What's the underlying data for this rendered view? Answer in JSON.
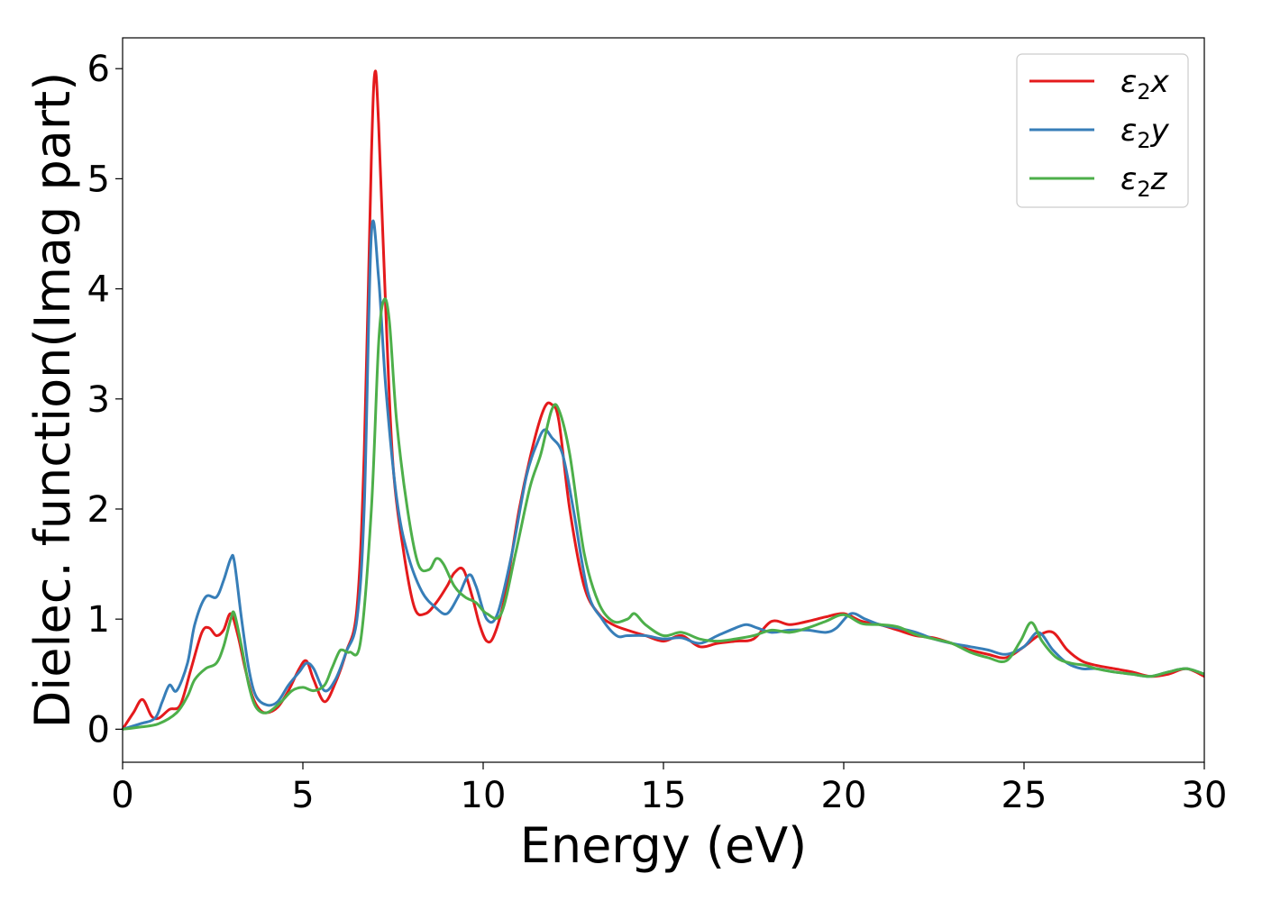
{
  "chart_data": {
    "type": "line",
    "xlabel": "Energy (eV)",
    "ylabel": "Dielec. function(Imag part)",
    "xlim": [
      0,
      30
    ],
    "ylim": [
      -0.3,
      6.28
    ],
    "xticks": [
      0,
      5,
      10,
      15,
      20,
      25,
      30
    ],
    "yticks": [
      0,
      1,
      2,
      3,
      4,
      5,
      6
    ],
    "grid": false,
    "legend_position": "top-right",
    "series": [
      {
        "name": "ε₂x",
        "legend": {
          "base": "ε",
          "sub": "2",
          "var": "x"
        },
        "color": "#e41a1c",
        "x": [
          0,
          0.3,
          0.55,
          0.8,
          1.0,
          1.3,
          1.6,
          1.9,
          2.2,
          2.4,
          2.6,
          2.8,
          3.0,
          3.2,
          3.4,
          3.6,
          3.8,
          4.0,
          4.3,
          4.6,
          4.9,
          5.1,
          5.3,
          5.6,
          5.9,
          6.2,
          6.5,
          6.7,
          6.9,
          7.0,
          7.1,
          7.3,
          7.5,
          7.8,
          8.1,
          8.4,
          8.7,
          9.0,
          9.2,
          9.45,
          9.7,
          9.9,
          10.1,
          10.3,
          10.6,
          11.0,
          11.4,
          11.7,
          11.9,
          12.1,
          12.4,
          12.8,
          13.2,
          13.6,
          14.0,
          14.5,
          15.0,
          15.5,
          16.0,
          16.5,
          17.0,
          17.5,
          18.0,
          18.5,
          19.0,
          19.5,
          20.0,
          20.5,
          21.0,
          21.5,
          22.0,
          22.5,
          23.0,
          23.5,
          24.0,
          24.5,
          25.0,
          25.4,
          25.8,
          26.2,
          26.6,
          27.0,
          27.5,
          28.0,
          28.5,
          29.0,
          29.5,
          30.0
        ],
        "y": [
          0,
          0.15,
          0.27,
          0.12,
          0.1,
          0.18,
          0.22,
          0.55,
          0.88,
          0.92,
          0.85,
          0.9,
          1.05,
          0.85,
          0.55,
          0.3,
          0.18,
          0.15,
          0.2,
          0.35,
          0.55,
          0.62,
          0.45,
          0.25,
          0.42,
          0.7,
          1.1,
          2.5,
          5.2,
          5.97,
          5.5,
          3.8,
          2.4,
          1.6,
          1.1,
          1.05,
          1.15,
          1.3,
          1.42,
          1.45,
          1.2,
          0.95,
          0.8,
          0.85,
          1.2,
          2.0,
          2.6,
          2.92,
          2.95,
          2.8,
          2.0,
          1.3,
          1.05,
          0.95,
          0.9,
          0.85,
          0.8,
          0.85,
          0.75,
          0.78,
          0.8,
          0.82,
          0.98,
          0.95,
          0.98,
          1.02,
          1.05,
          0.98,
          0.95,
          0.9,
          0.85,
          0.83,
          0.78,
          0.72,
          0.68,
          0.65,
          0.75,
          0.85,
          0.88,
          0.72,
          0.62,
          0.58,
          0.55,
          0.52,
          0.48,
          0.5,
          0.55,
          0.48
        ]
      },
      {
        "name": "ε₂y",
        "legend": {
          "base": "ε",
          "sub": "2",
          "var": "y"
        },
        "color": "#377eb8",
        "x": [
          0,
          0.5,
          0.9,
          1.1,
          1.3,
          1.5,
          1.8,
          2.0,
          2.3,
          2.6,
          2.8,
          3.0,
          3.1,
          3.3,
          3.5,
          3.7,
          4.0,
          4.3,
          4.6,
          4.9,
          5.1,
          5.3,
          5.6,
          5.9,
          6.2,
          6.5,
          6.7,
          6.9,
          7.1,
          7.3,
          7.6,
          7.9,
          8.3,
          8.7,
          9.0,
          9.3,
          9.6,
          9.8,
          10.1,
          10.4,
          10.8,
          11.2,
          11.5,
          11.7,
          11.9,
          12.2,
          12.5,
          12.9,
          13.3,
          13.7,
          14.0,
          14.5,
          15.0,
          15.5,
          16.0,
          16.5,
          17.0,
          17.3,
          17.6,
          18.0,
          18.5,
          19.0,
          19.5,
          19.8,
          20.2,
          20.6,
          21.0,
          21.5,
          22.0,
          22.5,
          23.0,
          23.5,
          24.0,
          24.5,
          25.0,
          25.4,
          25.8,
          26.2,
          26.6,
          27.0,
          27.5,
          28.0,
          28.5,
          29.0,
          29.5,
          30.0
        ],
        "y": [
          0,
          0.05,
          0.1,
          0.25,
          0.4,
          0.35,
          0.6,
          0.95,
          1.2,
          1.2,
          1.35,
          1.55,
          1.52,
          1.0,
          0.55,
          0.3,
          0.22,
          0.25,
          0.4,
          0.52,
          0.6,
          0.55,
          0.35,
          0.45,
          0.7,
          1.0,
          2.0,
          4.5,
          4.1,
          3.1,
          2.1,
          1.6,
          1.25,
          1.1,
          1.05,
          1.2,
          1.4,
          1.3,
          1.0,
          1.05,
          1.6,
          2.3,
          2.6,
          2.72,
          2.65,
          2.5,
          2.0,
          1.25,
          1.0,
          0.85,
          0.85,
          0.85,
          0.82,
          0.83,
          0.78,
          0.85,
          0.92,
          0.95,
          0.92,
          0.88,
          0.9,
          0.9,
          0.88,
          0.92,
          1.05,
          1.0,
          0.95,
          0.92,
          0.88,
          0.82,
          0.78,
          0.75,
          0.72,
          0.68,
          0.75,
          0.88,
          0.72,
          0.6,
          0.55,
          0.55,
          0.52,
          0.5,
          0.48,
          0.52,
          0.55,
          0.5
        ]
      },
      {
        "name": "ε₂z",
        "legend": {
          "base": "ε",
          "sub": "2",
          "var": "z"
        },
        "color": "#4daf4a",
        "x": [
          0,
          0.5,
          1.0,
          1.5,
          1.8,
          2.0,
          2.3,
          2.6,
          2.8,
          3.0,
          3.1,
          3.3,
          3.5,
          3.7,
          4.0,
          4.4,
          4.7,
          5.0,
          5.3,
          5.6,
          5.8,
          6.0,
          6.1,
          6.3,
          6.6,
          6.9,
          7.1,
          7.25,
          7.4,
          7.6,
          7.9,
          8.2,
          8.5,
          8.7,
          8.9,
          9.2,
          9.5,
          9.8,
          10.1,
          10.5,
          10.9,
          11.3,
          11.6,
          11.9,
          12.1,
          12.4,
          12.8,
          13.2,
          13.6,
          14.0,
          14.2,
          14.5,
          15.0,
          15.5,
          16.0,
          16.5,
          17.0,
          17.5,
          18.0,
          18.5,
          19.0,
          19.5,
          20.0,
          20.5,
          21.0,
          21.5,
          22.0,
          22.5,
          23.0,
          23.5,
          24.0,
          24.5,
          24.9,
          25.2,
          25.5,
          25.9,
          26.3,
          26.7,
          27.0,
          27.5,
          28.0,
          28.5,
          29.0,
          29.5,
          30.0
        ],
        "y": [
          0,
          0.02,
          0.05,
          0.15,
          0.3,
          0.45,
          0.55,
          0.6,
          0.75,
          1.0,
          1.05,
          0.75,
          0.4,
          0.2,
          0.15,
          0.25,
          0.35,
          0.38,
          0.35,
          0.4,
          0.55,
          0.7,
          0.72,
          0.7,
          0.8,
          2.0,
          3.5,
          3.9,
          3.7,
          2.8,
          2.0,
          1.5,
          1.45,
          1.55,
          1.5,
          1.3,
          1.2,
          1.15,
          1.05,
          1.05,
          1.6,
          2.2,
          2.5,
          2.9,
          2.9,
          2.5,
          1.6,
          1.15,
          0.98,
          1.0,
          1.05,
          0.95,
          0.85,
          0.88,
          0.82,
          0.8,
          0.82,
          0.85,
          0.9,
          0.88,
          0.92,
          0.98,
          1.04,
          0.96,
          0.95,
          0.93,
          0.86,
          0.82,
          0.78,
          0.7,
          0.65,
          0.62,
          0.8,
          0.97,
          0.8,
          0.65,
          0.6,
          0.58,
          0.55,
          0.52,
          0.5,
          0.48,
          0.52,
          0.55,
          0.5
        ]
      }
    ]
  }
}
